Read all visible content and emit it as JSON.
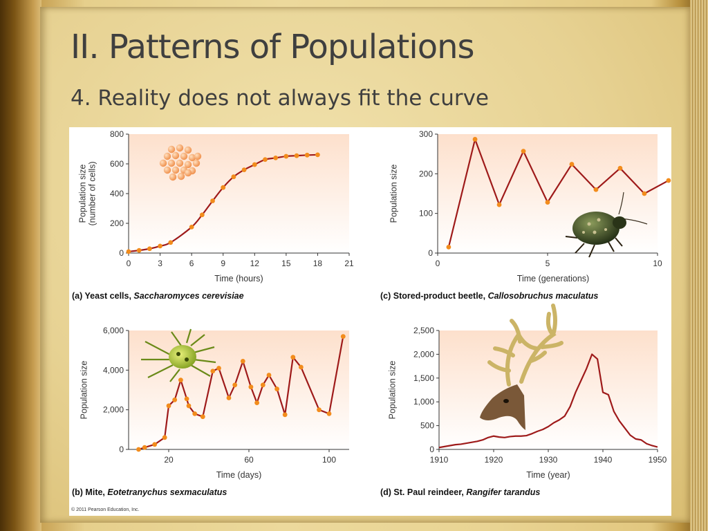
{
  "slide": {
    "title": "II. Patterns of Populations",
    "subtitle": "4. Reality does not always fit the curve",
    "copyright": "© 2011 Pearson Education, Inc."
  },
  "colors": {
    "line": "#9e1a1a",
    "point": "#f28c1c",
    "plot_bg_top": "#fde2d0",
    "plot_bg_bottom": "#ffffff",
    "text": "#333333"
  },
  "icons": [
    "yeast-cells-icon",
    "beetle-icon",
    "mite-icon",
    "reindeer-icon"
  ],
  "chart_data": [
    {
      "id": "a",
      "type": "line",
      "caption_prefix": "(a) Yeast cells, ",
      "caption_species": "Saccharomyces cerevisiae",
      "xlabel": "Time (hours)",
      "ylabel": [
        "Population size",
        "(number of cells)"
      ],
      "xlim": [
        0,
        21
      ],
      "ylim": [
        0,
        800
      ],
      "xticks": [
        0,
        3,
        6,
        9,
        12,
        15,
        18,
        21
      ],
      "yticks": [
        0,
        200,
        400,
        600,
        800
      ],
      "xtick_labels": [
        "0",
        "3",
        "6",
        "9",
        "12",
        "15",
        "18",
        "21"
      ],
      "ytick_labels": [
        "0",
        "200",
        "400",
        "600",
        "800"
      ],
      "curve": "smooth",
      "markers": true,
      "x": [
        0,
        1,
        2,
        3,
        4,
        6,
        7,
        8,
        9,
        10,
        11,
        12,
        13,
        14,
        15,
        16,
        17,
        18
      ],
      "y": [
        10,
        18,
        29,
        47,
        71,
        175,
        257,
        351,
        441,
        513,
        560,
        595,
        629,
        640,
        651,
        655,
        659,
        661
      ]
    },
    {
      "id": "c",
      "type": "line",
      "caption_prefix": "(c) Stored-product beetle, ",
      "caption_species": "Callosobruchus maculatus",
      "xlabel": "Time (generations)",
      "ylabel": [
        "Population size"
      ],
      "xlim": [
        0,
        10
      ],
      "ylim": [
        0,
        300
      ],
      "xticks": [
        0,
        5,
        10
      ],
      "yticks": [
        0,
        100,
        200,
        300
      ],
      "xtick_labels": [
        "0",
        "5",
        "10"
      ],
      "ytick_labels": [
        "0",
        "100",
        "200",
        "300"
      ],
      "curve": "straight",
      "markers": true,
      "x": [
        0.5,
        1.7,
        2.8,
        3.9,
        5.0,
        6.1,
        7.2,
        8.3,
        9.4,
        10.5
      ],
      "y": [
        15,
        287,
        122,
        257,
        128,
        224,
        160,
        214,
        150,
        183
      ]
    },
    {
      "id": "b",
      "type": "line",
      "caption_prefix": "(b) Mite, ",
      "caption_species": "Eotetranychus sexmaculatus",
      "xlabel": "Time (days)",
      "ylabel": [
        "Population size"
      ],
      "xlim": [
        0,
        110
      ],
      "ylim": [
        0,
        6000
      ],
      "xticks": [
        20,
        60,
        100
      ],
      "yticks": [
        0,
        2000,
        4000,
        6000
      ],
      "xtick_labels": [
        "20",
        "60",
        "100"
      ],
      "ytick_labels": [
        "0",
        "2,000",
        "4,000",
        "6,000"
      ],
      "curve": "straight",
      "markers": true,
      "x": [
        5,
        8,
        13,
        18,
        20,
        23,
        26,
        29,
        30,
        33,
        37,
        42,
        45,
        50,
        53,
        57,
        61,
        64,
        67,
        70,
        74,
        78,
        82,
        86,
        95,
        100,
        107
      ],
      "y": [
        0,
        100,
        250,
        600,
        2200,
        2500,
        3500,
        2550,
        2200,
        1800,
        1650,
        3950,
        4100,
        2600,
        3250,
        4450,
        3150,
        2350,
        3250,
        3750,
        3050,
        1750,
        4650,
        4150,
        2000,
        1800,
        5700
      ]
    },
    {
      "id": "d",
      "type": "line",
      "caption_prefix": "(d) St. Paul reindeer, ",
      "caption_species": "Rangifer tarandus",
      "xlabel": "Time (year)",
      "ylabel": [
        "Population size"
      ],
      "xlim": [
        1910,
        1950
      ],
      "ylim": [
        0,
        2500
      ],
      "xticks": [
        1910,
        1920,
        1930,
        1940,
        1950
      ],
      "yticks": [
        0,
        500,
        1000,
        1500,
        2000,
        2500
      ],
      "xtick_labels": [
        "1910",
        "1920",
        "1930",
        "1940",
        "1950"
      ],
      "ytick_labels": [
        "0",
        "500",
        "1,000",
        "1,500",
        "2,000",
        "2,500"
      ],
      "curve": "straight",
      "markers": false,
      "x": [
        1910,
        1911,
        1912,
        1913,
        1914,
        1915,
        1916,
        1917,
        1918,
        1919,
        1920,
        1921,
        1922,
        1923,
        1924,
        1925,
        1926,
        1927,
        1928,
        1929,
        1930,
        1931,
        1932,
        1933,
        1934,
        1935,
        1936,
        1937,
        1938,
        1939,
        1940,
        1941,
        1942,
        1943,
        1944,
        1945,
        1946,
        1947,
        1948,
        1949,
        1950
      ],
      "y": [
        40,
        60,
        80,
        100,
        110,
        130,
        150,
        170,
        200,
        250,
        280,
        260,
        250,
        270,
        280,
        280,
        290,
        330,
        380,
        420,
        480,
        560,
        620,
        700,
        900,
        1200,
        1450,
        1700,
        2000,
        1900,
        1200,
        1150,
        800,
        600,
        450,
        300,
        220,
        200,
        120,
        80,
        50
      ]
    }
  ]
}
